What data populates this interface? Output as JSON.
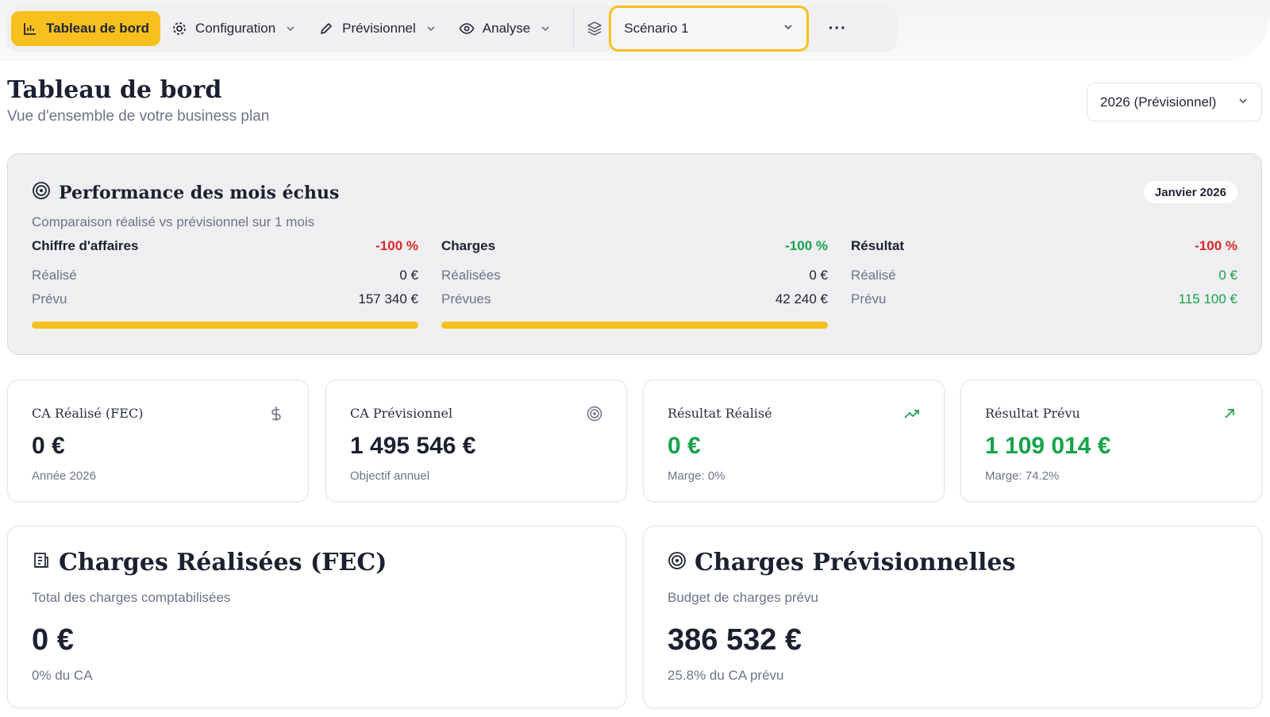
{
  "nav": {
    "items": [
      {
        "label": "Tableau de bord",
        "icon": "bar-chart-icon",
        "active": true
      },
      {
        "label": "Configuration",
        "icon": "gear-icon"
      },
      {
        "label": "Prévisionnel",
        "icon": "pencil-icon"
      },
      {
        "label": "Analyse",
        "icon": "eye-icon"
      }
    ],
    "scenario": "Scénario 1",
    "more": "···"
  },
  "header": {
    "title": "Tableau de bord",
    "subtitle": "Vue d'ensemble de votre business plan",
    "year_select": "2026 (Prévisionnel)"
  },
  "performance": {
    "title": "Performance des mois échus",
    "subtitle": "Comparaison réalisé vs prévisionnel sur 1 mois",
    "month": "Janvier 2026",
    "columns": [
      {
        "title": "Chiffre d'affaires",
        "pct": "-100 %",
        "r_label": "Réalisé",
        "r_value": "0 €",
        "p_label": "Prévu",
        "p_value": "157 340 €"
      },
      {
        "title": "Charges",
        "pct": "-100 %",
        "r_label": "Réalisées",
        "r_value": "0 €",
        "p_label": "Prévues",
        "p_value": "42 240 €"
      },
      {
        "title": "Résultat",
        "pct": "-100 %",
        "r_label": "Réalisé",
        "r_value": "0 €",
        "p_label": "Prévu",
        "p_value": "115 100 €"
      }
    ]
  },
  "kpis": [
    {
      "label": "CA Réalisé (FEC)",
      "value": "0 €",
      "note": "Année 2026",
      "icon": "dollar-icon"
    },
    {
      "label": "CA Prévisionnel",
      "value": "1 495 546 €",
      "note": "Objectif annuel",
      "icon": "target-icon"
    },
    {
      "label": "Résultat Réalisé",
      "value": "0 €",
      "note": "Marge: 0%",
      "icon": "trending-up-icon"
    },
    {
      "label": "Résultat Prévu",
      "value": "1 109 014 €",
      "note": "Marge: 74.2%",
      "icon": "arrow-up-right-icon"
    }
  ],
  "charges": [
    {
      "title": "Charges Réalisées (FEC)",
      "subtitle": "Total des charges comptabilisées",
      "value": "0 €",
      "note": "0% du CA",
      "icon": "receipt-icon"
    },
    {
      "title": "Charges Prévisionnelles",
      "subtitle": "Budget de charges prévu",
      "value": "386 532 €",
      "note": "25.8% du CA prévu",
      "icon": "target-icon"
    }
  ],
  "colors": {
    "accent": "#f7c01e",
    "negative": "#dc2626",
    "positive": "#16a34a"
  }
}
